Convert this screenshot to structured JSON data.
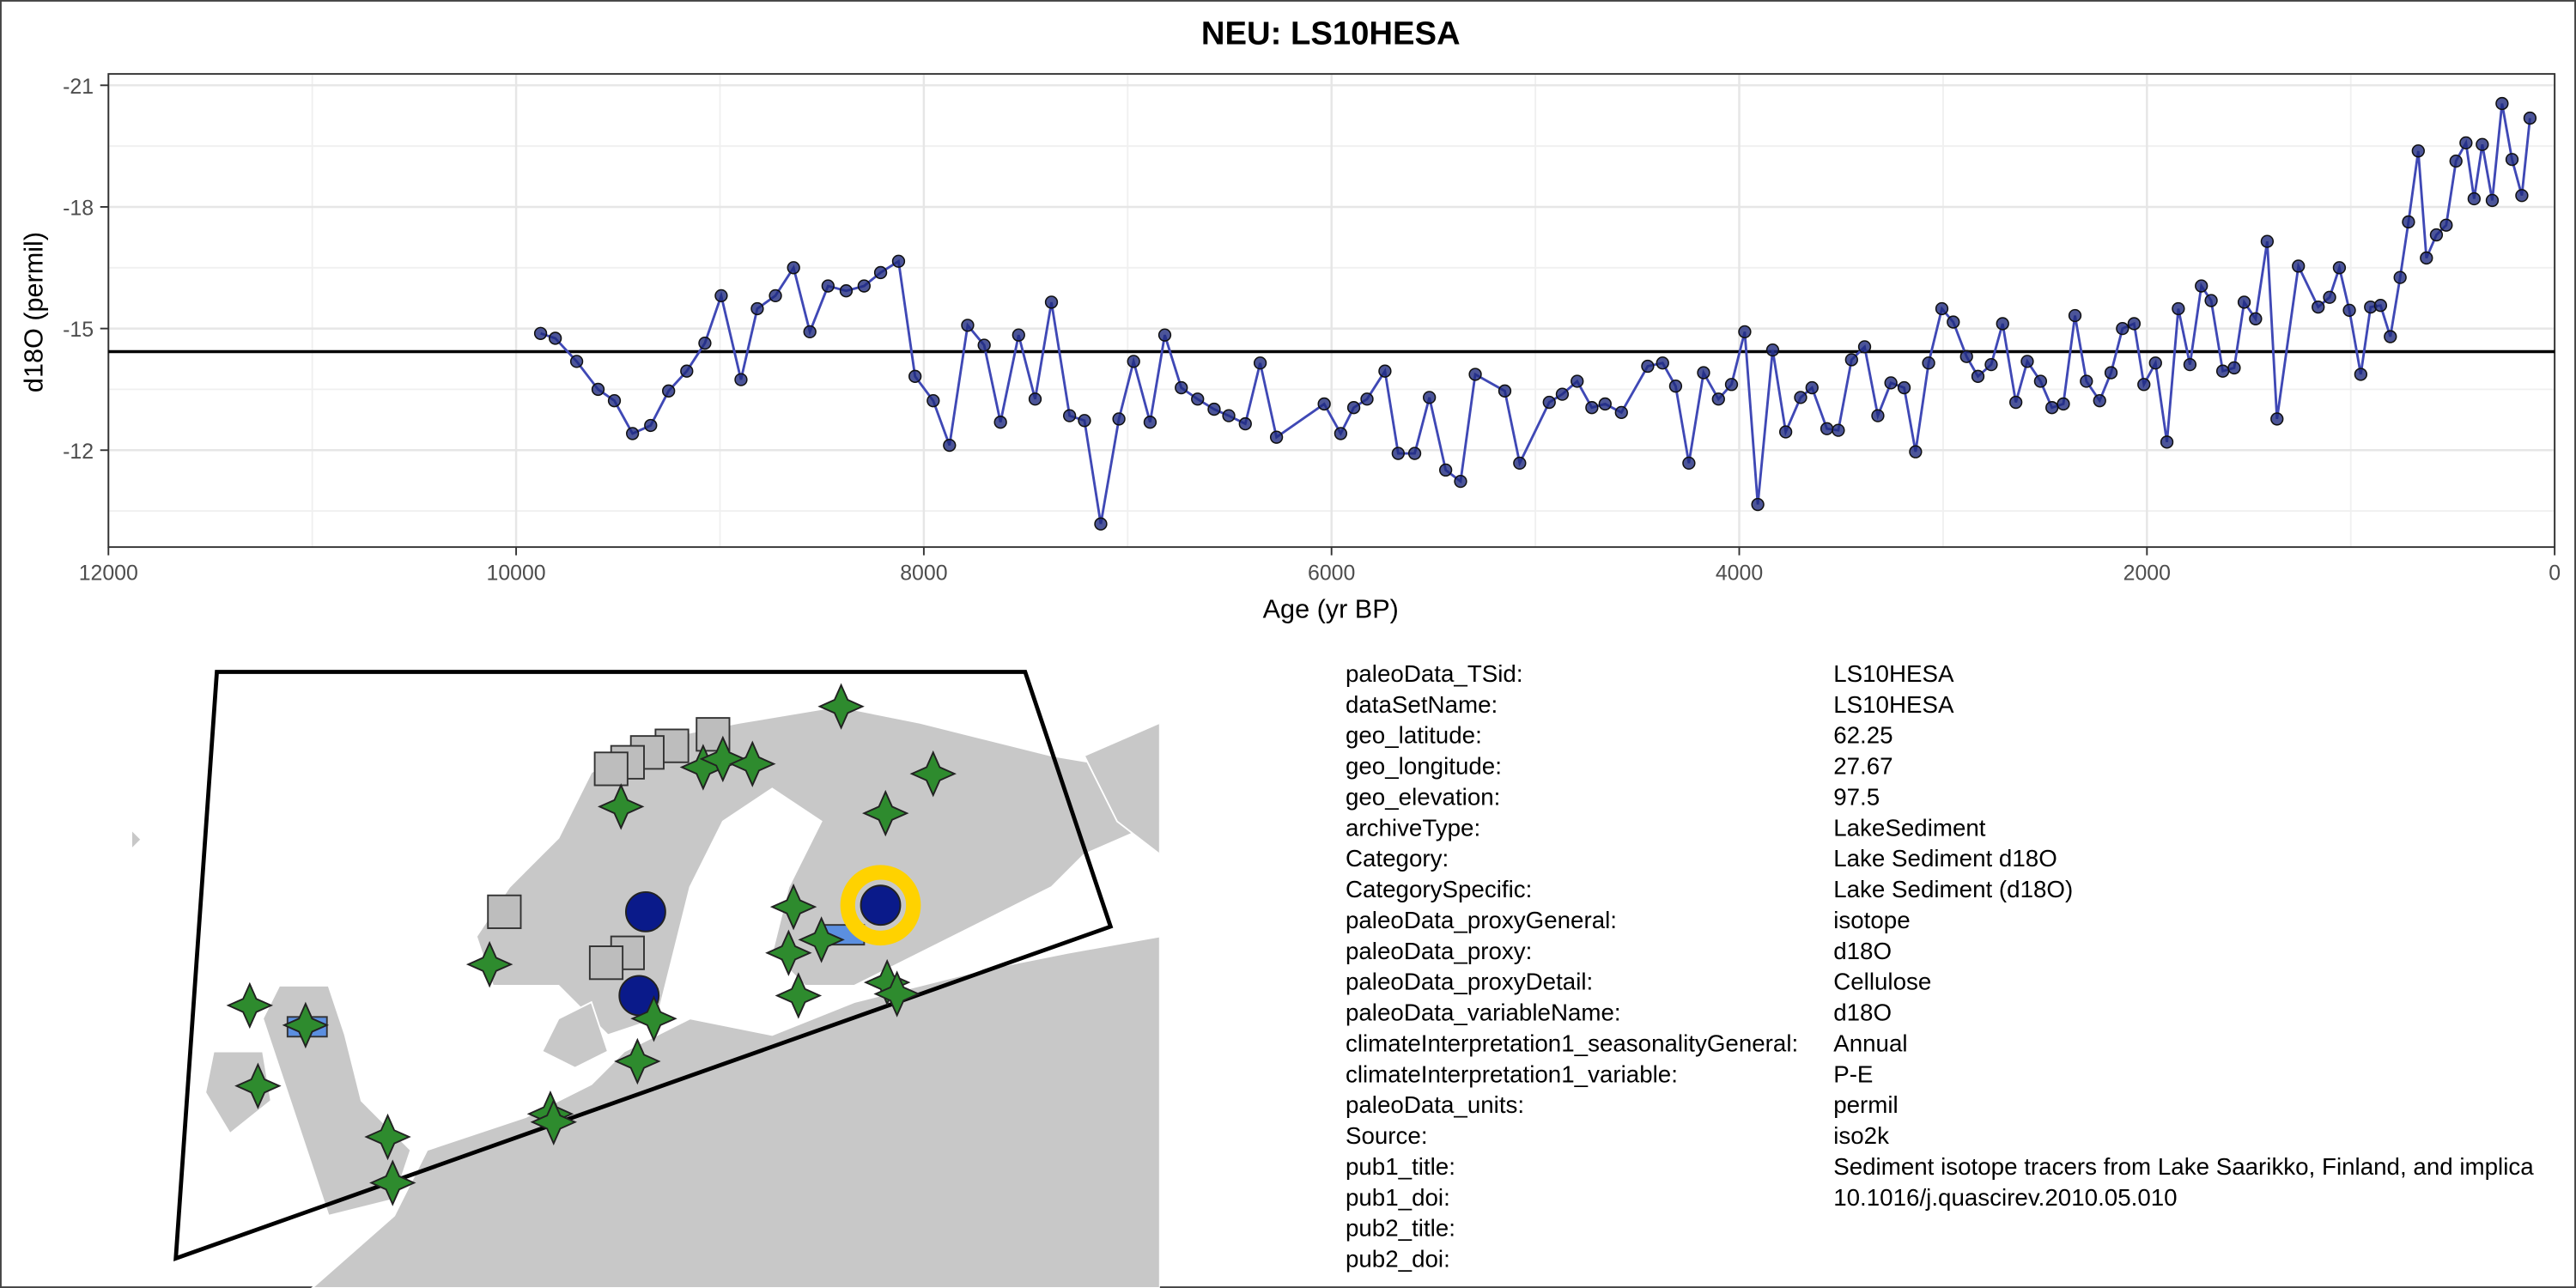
{
  "chart_data": {
    "type": "line",
    "title": "NEU: LS10HESA",
    "x_label": "Age (yr BP)",
    "y_label": "d18O (permil)",
    "x": [
      9880,
      9808,
      9703,
      9598,
      9518,
      9429,
      9340,
      9252,
      9163,
      9074,
      8994,
      8897,
      8817,
      8728,
      8639,
      8559,
      8470,
      8381,
      8293,
      8212,
      8124,
      8043,
      7954,
      7874,
      7785,
      7704,
      7624,
      7535,
      7454,
      7374,
      7285,
      7212,
      7132,
      7043,
      6971,
      6890,
      6818,
      6737,
      6657,
      6576,
      6504,
      6423,
      6350,
      6270,
      6036,
      5955,
      5891,
      5826,
      5738,
      5673,
      5592,
      5520,
      5440,
      5367,
      5295,
      5150,
      5077,
      4932,
      4868,
      4795,
      4723,
      4658,
      4578,
      4449,
      4376,
      4312,
      4247,
      4175,
      4102,
      4038,
      3973,
      3909,
      3836,
      3772,
      3699,
      3643,
      3570,
      3514,
      3449,
      3385,
      3320,
      3256,
      3191,
      3135,
      3071,
      3006,
      2950,
      2885,
      2829,
      2764,
      2708,
      2643,
      2587,
      2522,
      2466,
      2410,
      2353,
      2297,
      2232,
      2176,
      2120,
      2063,
      2015,
      1958,
      1902,
      1846,
      1789,
      1733,
      1685,
      1628,
      1572,
      1523,
      1467,
      1410,
      1362,
      1257,
      1160,
      1104,
      1056,
      1007,
      951,
      903,
      854,
      806,
      758,
      717,
      669,
      629,
      580,
      532,
      484,
      435,
      395,
      355,
      306,
      258,
      209,
      161,
      121
    ],
    "values": [
      -14.88,
      -14.76,
      -14.19,
      -13.5,
      -13.22,
      -12.41,
      -12.61,
      -13.46,
      -13.95,
      -14.64,
      -15.81,
      -13.74,
      -15.49,
      -15.81,
      -16.5,
      -14.92,
      -16.05,
      -15.93,
      -16.05,
      -16.38,
      -16.66,
      -13.82,
      -13.22,
      -12.12,
      -15.08,
      -14.59,
      -12.69,
      -14.84,
      -13.26,
      -15.65,
      -12.85,
      -12.73,
      -10.18,
      -12.77,
      -14.19,
      -12.69,
      -14.84,
      -13.54,
      -13.26,
      -13.01,
      -12.85,
      -12.65,
      -14.15,
      -12.32,
      -13.14,
      -12.41,
      -13.05,
      -13.26,
      -13.95,
      -11.92,
      -11.92,
      -13.3,
      -11.51,
      -11.23,
      -13.87,
      -13.46,
      -11.68,
      -13.18,
      -13.38,
      -13.7,
      -13.05,
      -13.14,
      -12.93,
      -14.07,
      -14.15,
      -13.58,
      -11.68,
      -13.91,
      -13.26,
      -13.62,
      -14.92,
      -10.66,
      -14.47,
      -12.45,
      -13.3,
      -13.54,
      -12.53,
      -12.49,
      -14.23,
      -14.55,
      -12.85,
      -13.66,
      -13.54,
      -11.96,
      -14.15,
      -15.49,
      -15.16,
      -14.31,
      -13.82,
      -14.11,
      -15.12,
      -13.18,
      -14.19,
      -13.7,
      -13.05,
      -13.14,
      -15.32,
      -13.7,
      -13.22,
      -13.91,
      -15.0,
      -15.12,
      -13.62,
      -14.15,
      -12.2,
      -15.49,
      -14.11,
      -16.05,
      -15.69,
      -13.95,
      -14.03,
      -15.65,
      -15.24,
      -17.15,
      -12.77,
      -16.54,
      -15.53,
      -15.77,
      -16.5,
      -15.45,
      -13.87,
      -15.53,
      -15.57,
      -14.8,
      -16.26,
      -17.63,
      -19.38,
      -16.74,
      -17.31,
      -17.55,
      -19.13,
      -19.58,
      -18.2,
      -19.54,
      -18.16,
      -20.55,
      -19.17,
      -18.28,
      -20.19
    ],
    "color": "#3f48b5",
    "point_color": "#1f2a80",
    "hline": -14.43,
    "hline_color": "#000000",
    "xlim": [
      12000,
      0
    ],
    "xticks": [
      12000,
      10000,
      8000,
      6000,
      4000,
      2000,
      0
    ],
    "ylim": [
      -9.61,
      -21.28
    ],
    "yticks": [
      -21,
      -18,
      -15,
      -12
    ],
    "grid": true
  },
  "info": {
    "rows": [
      {
        "key": "paleoData_TSid:",
        "value": "LS10HESA"
      },
      {
        "key": "dataSetName:",
        "value": "LS10HESA"
      },
      {
        "key": "geo_latitude:",
        "value": "62.25"
      },
      {
        "key": "geo_longitude:",
        "value": "27.67"
      },
      {
        "key": "geo_elevation:",
        "value": "97.5"
      },
      {
        "key": "archiveType:",
        "value": "LakeSediment"
      },
      {
        "key": "Category:",
        "value": "Lake Sediment d18O"
      },
      {
        "key": "CategorySpecific:",
        "value": "Lake Sediment (d18O)"
      },
      {
        "key": "paleoData_proxyGeneral:",
        "value": "isotope"
      },
      {
        "key": "paleoData_proxy:",
        "value": "d18O"
      },
      {
        "key": "paleoData_proxyDetail:",
        "value": "Cellulose"
      },
      {
        "key": "paleoData_variableName:",
        "value": "d18O"
      },
      {
        "key": "climateInterpretation1_seasonalityGeneral:",
        "value": "Annual"
      },
      {
        "key": "climateInterpretation1_variable:",
        "value": "P-E"
      },
      {
        "key": "paleoData_units:",
        "value": "permil"
      },
      {
        "key": "Source:",
        "value": "iso2k"
      },
      {
        "key": "pub1_title:",
        "value": "Sediment isotope tracers from Lake Saarikko, Finland, and implica"
      },
      {
        "key": "pub1_doi:",
        "value": "10.1016/j.quascirev.2010.05.010"
      },
      {
        "key": "pub2_title:"
      },
      {
        "key": "pub2_doi:"
      }
    ]
  }
}
